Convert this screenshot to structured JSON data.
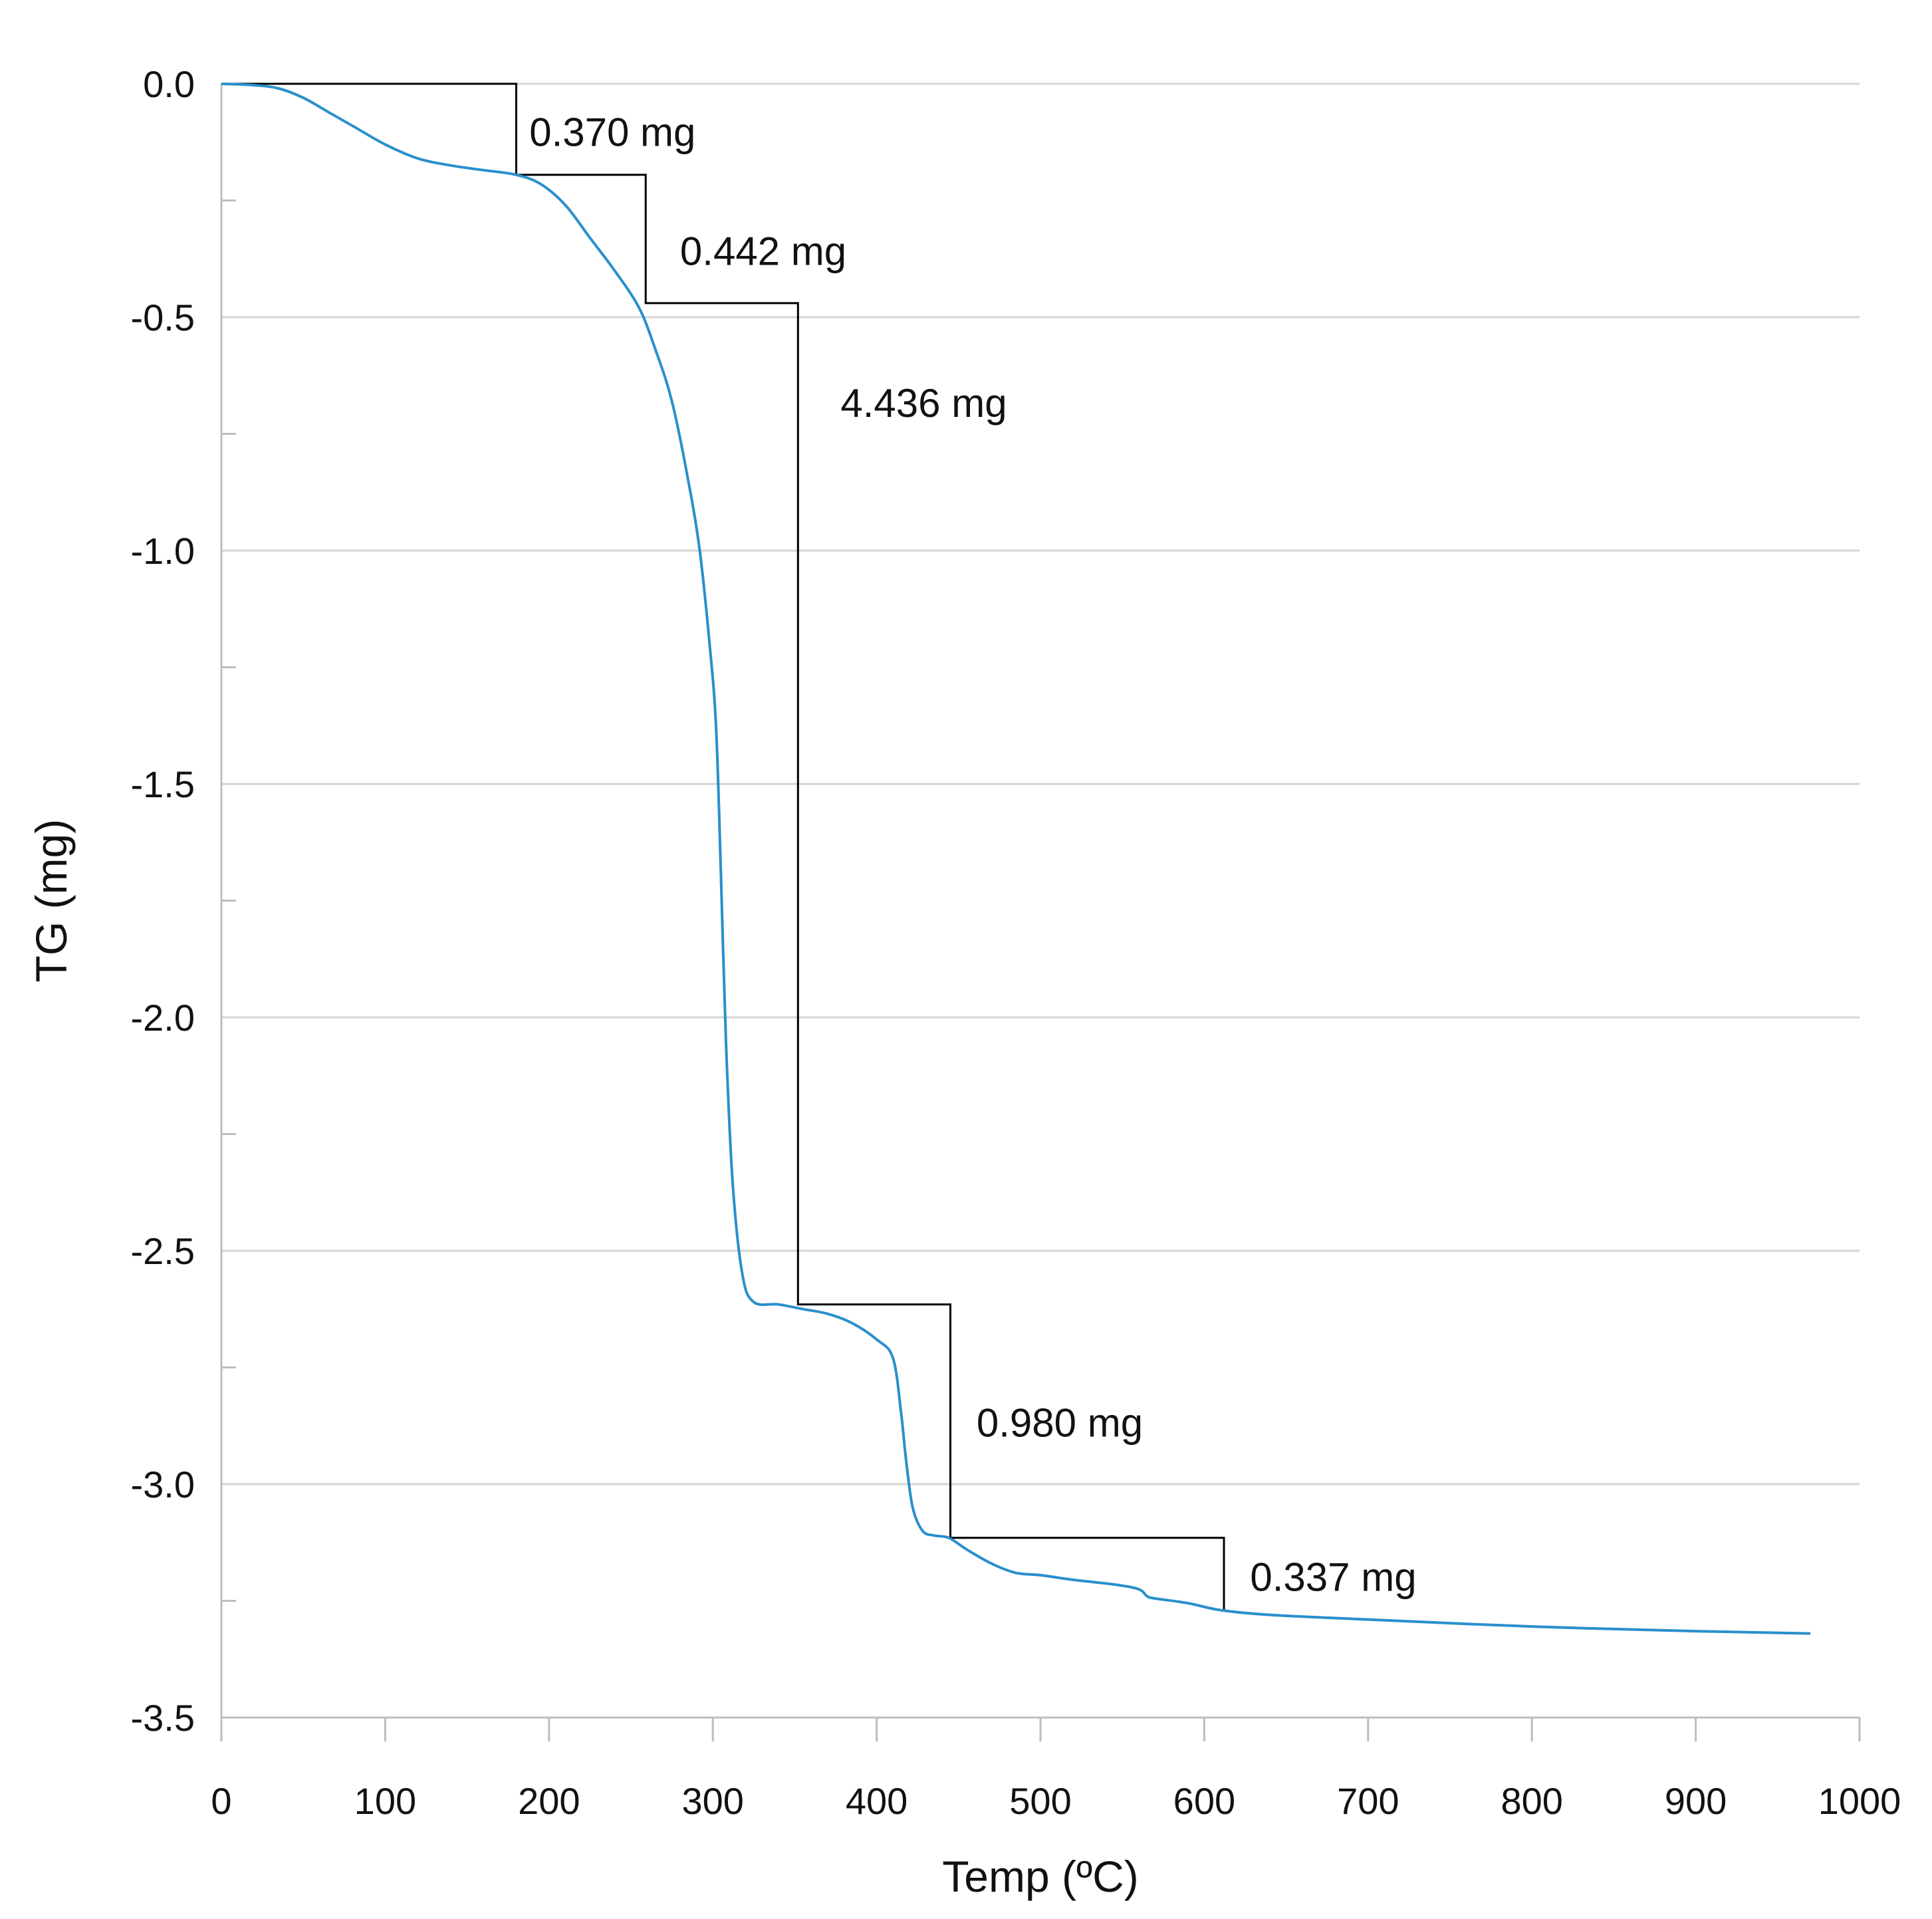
{
  "chart_data": {
    "type": "line",
    "title": "",
    "xlabel": "Temp (ºC)",
    "ylabel": "TG (mg)",
    "xlim": [
      0,
      1000
    ],
    "ylim": [
      -3.5,
      0.0
    ],
    "x_ticks": [
      0,
      100,
      200,
      300,
      400,
      500,
      600,
      700,
      800,
      900,
      1000
    ],
    "x_tick_labels": [
      "0",
      "100",
      "200",
      "300",
      "400",
      "500",
      "600",
      "700",
      "800",
      "900",
      "1000"
    ],
    "y_ticks": [
      0.0,
      -0.5,
      -1.0,
      -1.5,
      -2.0,
      -2.5,
      -3.0,
      -3.5
    ],
    "y_tick_labels": [
      "0.0",
      "-0.5",
      "-1.0",
      "-1.5",
      "-2.0",
      "-2.5",
      "-3.0",
      "-3.5"
    ],
    "y_minor_ticks": [
      -0.25,
      -0.75,
      -1.25,
      -1.75,
      -2.25,
      -2.75,
      -3.25
    ],
    "grid": true,
    "colors": {
      "curve": "#2a8fcc",
      "steps": "#000000",
      "grid": "#d4d4d4"
    },
    "series": [
      {
        "name": "TG",
        "x": [
          0,
          20,
          35,
          50,
          65,
          80,
          100,
          120,
          140,
          160,
          180,
          195,
          210,
          225,
          240,
          255,
          265,
          275,
          285,
          292,
          298,
          302,
          305,
          308,
          312,
          318,
          325,
          340,
          355,
          370,
          385,
          400,
          410,
          415,
          418,
          422,
          428,
          435,
          444,
          455,
          470,
          485,
          500,
          520,
          545,
          560,
          565,
          570,
          590,
          610,
          640,
          700,
          800,
          900,
          970
        ],
        "values": [
          0.0,
          -0.003,
          -0.01,
          -0.03,
          -0.06,
          -0.09,
          -0.13,
          -0.16,
          -0.175,
          -0.185,
          -0.195,
          -0.215,
          -0.26,
          -0.33,
          -0.4,
          -0.48,
          -0.57,
          -0.68,
          -0.85,
          -1.0,
          -1.2,
          -1.38,
          -1.7,
          -2.05,
          -2.35,
          -2.55,
          -2.61,
          -2.615,
          -2.625,
          -2.635,
          -2.655,
          -2.69,
          -2.73,
          -2.85,
          -2.95,
          -3.05,
          -3.1,
          -3.11,
          -3.115,
          -3.14,
          -3.17,
          -3.19,
          -3.195,
          -3.205,
          -3.215,
          -3.225,
          -3.24,
          -3.245,
          -3.255,
          -3.27,
          -3.28,
          -3.29,
          -3.305,
          -3.315,
          -3.32
        ]
      }
    ],
    "steps": {
      "x": [
        0,
        180,
        180,
        259,
        259,
        352,
        352,
        445,
        445,
        612,
        612
      ],
      "y": [
        0.0,
        0.0,
        -0.195,
        -0.195,
        -0.47,
        -0.47,
        -2.615,
        -2.615,
        -3.115,
        -3.115,
        -3.27
      ]
    },
    "annotations": [
      {
        "text": "0.370 mg",
        "x": 188,
        "y": -0.105
      },
      {
        "text": "0.442 mg",
        "x": 280,
        "y": -0.36
      },
      {
        "text": "4.436 mg",
        "x": 378,
        "y": -0.685
      },
      {
        "text": "0.980 mg",
        "x": 461,
        "y": -2.87
      },
      {
        "text": "0.337 mg",
        "x": 628,
        "y": -3.2
      }
    ]
  }
}
